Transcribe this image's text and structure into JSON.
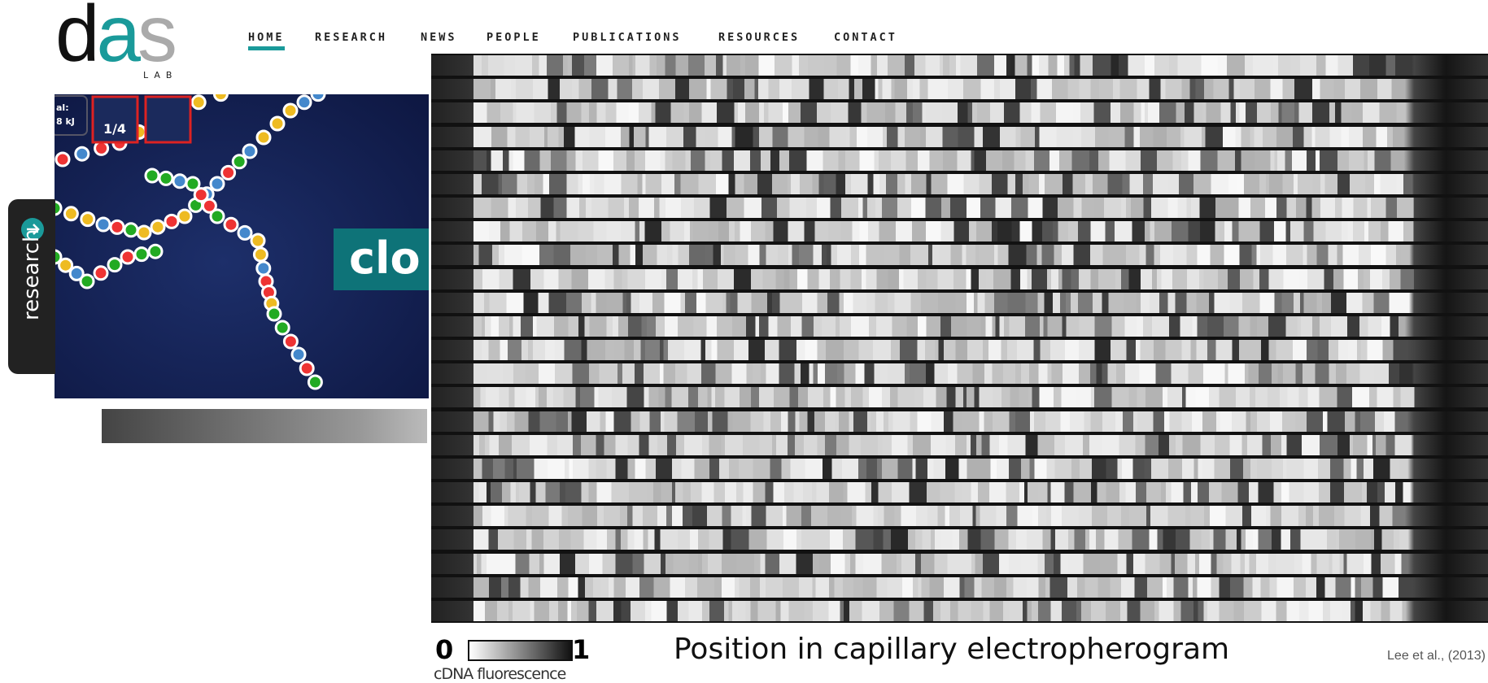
{
  "header": {
    "logo": "das",
    "logo_sub": "LAB",
    "nav": [
      "HOME",
      "RESEARCH",
      "NEWS",
      "PEOPLE",
      "PUBLICATIONS",
      "RESOURCES",
      "CONTACT"
    ]
  },
  "side_tab": "research",
  "banner": {
    "text": "clo",
    "energy_label": "al:",
    "energy_value": "8 kJ",
    "counter": "1/4"
  },
  "figure": {
    "scale_min": "0",
    "scale_max": "1",
    "scale_label": "cDNA fluorescence",
    "axis_label": "Position in capillary electropherogram",
    "credit": "Lee et al., (2013)"
  }
}
